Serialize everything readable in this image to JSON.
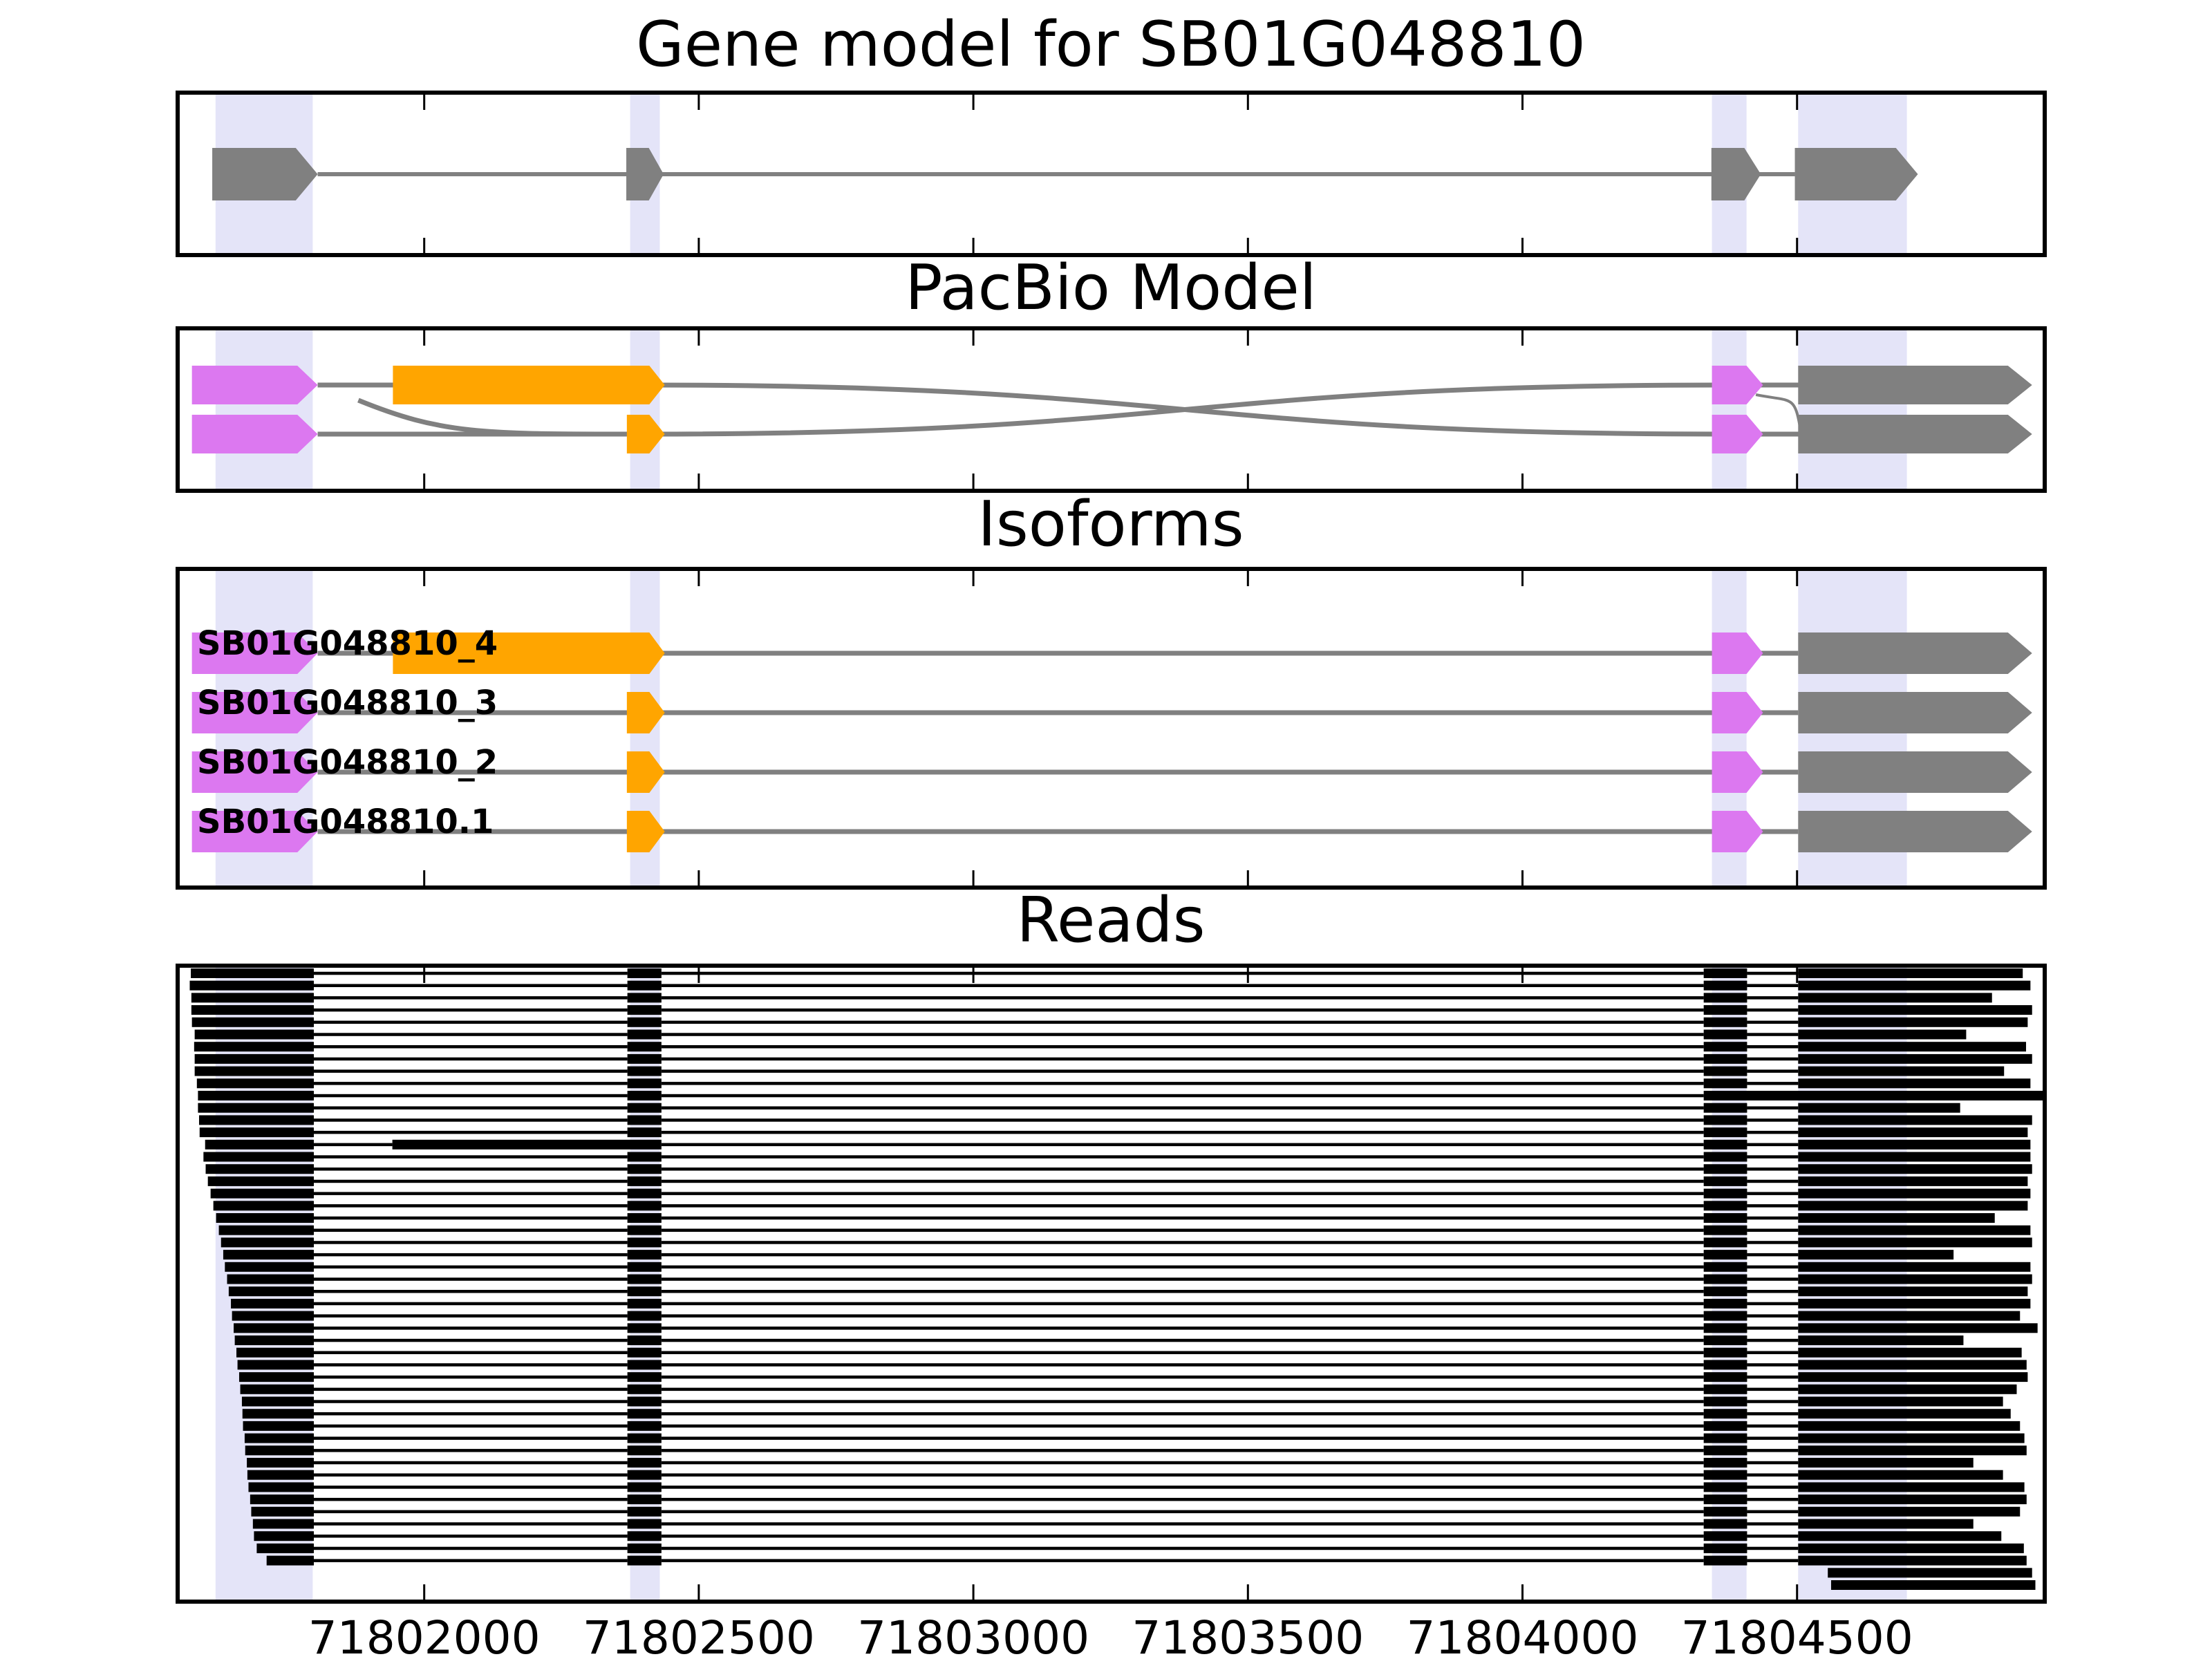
{
  "chart_data": {
    "type": "genome-browser-tracks",
    "description": "Four stacked genomic track panels sharing one x axis (genomic coordinate, bp)",
    "axis": {
      "xlim": [
        71801551,
        71804951
      ],
      "ticks": [
        {
          "bp": 71802000,
          "label": "71802000"
        },
        {
          "bp": 71802500,
          "label": "71802500"
        },
        {
          "bp": 71803000,
          "label": "71803000"
        },
        {
          "bp": 71803500,
          "label": "71803500"
        },
        {
          "bp": 71804000,
          "label": "71804000"
        },
        {
          "bp": 71804500,
          "label": "71804500"
        }
      ]
    },
    "colors": {
      "gray": "#808080",
      "orange": "#FFA500",
      "magenta": "#DC78F0",
      "highlight": "#E4E4F8",
      "read": "#000000",
      "intron": "#808080",
      "frame": "#000000"
    },
    "highlights": [
      {
        "name": "exon1-region",
        "range": [
          71801620,
          71801797
        ]
      },
      {
        "name": "exon2-region",
        "range": [
          71802375,
          71802429
        ]
      },
      {
        "name": "exon3-region",
        "range": [
          71804345,
          71804408
        ]
      },
      {
        "name": "exon4-region",
        "range": [
          71804502,
          71804700
        ]
      }
    ],
    "features": {
      "g1": {
        "s": 71801614,
        "e": 71801766,
        "t": 71801806,
        "c": "gray"
      },
      "g2": {
        "s": 71802368,
        "e": 71802409,
        "t": 71802436,
        "c": "gray"
      },
      "g3": {
        "s": 71804344,
        "e": 71804404,
        "t": 71804434,
        "c": "gray"
      },
      "g4": {
        "s": 71804496,
        "e": 71804680,
        "t": 71804720,
        "c": "gray"
      },
      "m1": {
        "s": 71801577,
        "e": 71801769,
        "t": 71801806,
        "c": "magenta"
      },
      "ob": {
        "s": 71801943,
        "e": 71802410,
        "t": 71802438,
        "c": "orange"
      },
      "os": {
        "s": 71802369,
        "e": 71802410,
        "t": 71802438,
        "c": "orange"
      },
      "m3": {
        "s": 71804345,
        "e": 71804408,
        "t": 71804438,
        "c": "magenta"
      },
      "G4": {
        "s": 71804502,
        "e": 71804884,
        "t": 71804928,
        "c": "gray"
      }
    },
    "panels": {
      "gene_model": {
        "title": "Gene model for SB01G048810",
        "exons": [
          "g1",
          "g2",
          "g3",
          "g4"
        ]
      },
      "pacbio": {
        "title": "PacBio Model",
        "rows": [
          {
            "exons": [
              "m1",
              "ob",
              "m3",
              "G4"
            ]
          },
          {
            "exons": [
              "m1",
              "os",
              "m3",
              "G4"
            ]
          }
        ],
        "connectors": [
          {
            "x1": 71801806,
            "r1": 0,
            "x2": 71801950,
            "r2": 0,
            "k": "line"
          },
          {
            "x1": 71801806,
            "r1": 1,
            "x2": 71802380,
            "r2": 1,
            "k": "line"
          },
          {
            "x1": 71801880,
            "r1": 0,
            "dy1": 22,
            "x2": 71802380,
            "r2": 1,
            "k": "drop"
          },
          {
            "x1": 71802410,
            "r1": 0,
            "x2": 71804360,
            "r2": 1,
            "k": "cross"
          },
          {
            "x1": 71802410,
            "r1": 1,
            "x2": 71804360,
            "r2": 0,
            "k": "cross"
          },
          {
            "x1": 71804430,
            "r1": 0,
            "x2": 71804520,
            "r2": 0,
            "k": "line"
          },
          {
            "x1": 71804430,
            "r1": 1,
            "x2": 71804520,
            "r2": 1,
            "k": "line"
          },
          {
            "x1": 71804425,
            "r1": 0,
            "dy1": 14,
            "x2": 71804505,
            "r2": 1,
            "dy2": -12,
            "k": "s",
            "w": 4
          }
        ]
      },
      "isoforms": {
        "title": "Isoforms",
        "items": [
          {
            "label": "SB01G048810_4",
            "exons": [
              "m1",
              "ob",
              "m3",
              "G4"
            ]
          },
          {
            "label": "SB01G048810_3",
            "exons": [
              "m1",
              "os",
              "m3",
              "G4"
            ]
          },
          {
            "label": "SB01G048810_2",
            "exons": [
              "m1",
              "os",
              "m3",
              "G4"
            ]
          },
          {
            "label": "SB01G048810.1",
            "exons": [
              "m1",
              "os",
              "m3",
              "G4"
            ]
          }
        ]
      },
      "reads": {
        "title": "Reads",
        "block_template": {
          "e1_end": 71801799,
          "e2": [
            71802370,
            71802432
          ],
          "e3": [
            71804330,
            71804409
          ],
          "e4_start": 71804502,
          "long2": [
            71801942,
            71802432
          ]
        },
        "items": [
          [
            71801575,
            71804911
          ],
          [
            71801573,
            71804925
          ],
          [
            71801576,
            71804855
          ],
          [
            71801576,
            71804928
          ],
          [
            71801577,
            71804920
          ],
          [
            71801582,
            71804808
          ],
          [
            71801581,
            71804917
          ],
          [
            71801582,
            71804928
          ],
          [
            71801582,
            71804877
          ],
          [
            71801586,
            71804925
          ],
          [
            71801588,
            71804950,
            "merge34"
          ],
          [
            71801588,
            71804797
          ],
          [
            71801590,
            71804928
          ],
          [
            71801591,
            71804920
          ],
          [
            71801601,
            71804925,
            "long2"
          ],
          [
            71801598,
            71804925
          ],
          [
            71801602,
            71804928
          ],
          [
            71801606,
            71804920
          ],
          [
            71801611,
            71804925
          ],
          [
            71801616,
            71804920
          ],
          [
            71801621,
            71804860
          ],
          [
            71801626,
            71804925
          ],
          [
            71801630,
            71804928
          ],
          [
            71801634,
            71804785
          ],
          [
            71801637,
            71804925
          ],
          [
            71801641,
            71804928
          ],
          [
            71801644,
            71804920
          ],
          [
            71801648,
            71804925
          ],
          [
            71801650,
            71804906
          ],
          [
            71801653,
            71804938
          ],
          [
            71801655,
            71804803
          ],
          [
            71801658,
            71804909
          ],
          [
            71801660,
            71804918
          ],
          [
            71801663,
            71804920
          ],
          [
            71801665,
            71804900
          ],
          [
            71801668,
            71804875
          ],
          [
            71801669,
            71804889
          ],
          [
            71801670,
            71804906
          ],
          [
            71801673,
            71804914
          ],
          [
            71801674,
            71804918
          ],
          [
            71801677,
            71804821
          ],
          [
            71801678,
            71804875
          ],
          [
            71801680,
            71804914
          ],
          [
            71801683,
            71804918
          ],
          [
            71801685,
            71804906
          ],
          [
            71801688,
            71804821
          ],
          [
            71801690,
            71804872
          ],
          [
            71801695,
            71804913
          ],
          [
            71801713,
            71804918
          ]
        ],
        "right_only_items": [
          [
            71804556,
            71804928
          ],
          [
            71804562,
            71804934
          ]
        ]
      }
    }
  }
}
